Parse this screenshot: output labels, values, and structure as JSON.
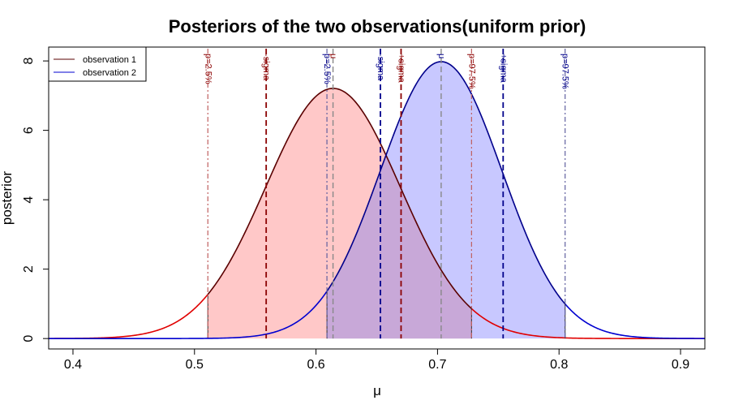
{
  "chart_data": {
    "type": "line",
    "title": "Posteriors of the two observations(uniform prior)",
    "xlabel": "μ",
    "ylabel": "posterior",
    "xlim": [
      0.38,
      0.92
    ],
    "ylim": [
      -0.3,
      8.4
    ],
    "xticks": [
      0.4,
      0.5,
      0.6,
      0.7,
      0.8,
      0.9
    ],
    "xtick_labels": [
      "0.4",
      "0.5",
      "0.6",
      "0.7",
      "0.8",
      "0.9"
    ],
    "yticks": [
      0,
      2,
      4,
      6,
      8
    ],
    "ytick_labels": [
      "0",
      "2",
      "4",
      "6",
      "8"
    ],
    "grid": false,
    "legend_position": "top-left",
    "series": [
      {
        "name": "observation 1",
        "color": "#e00000",
        "edge_color": "#5a0000",
        "fill": "#ffc8c8",
        "distribution": "normal",
        "mean": 0.614,
        "sigma": 0.0553,
        "peak": 7.21,
        "interval_95": [
          0.511,
          0.728
        ],
        "sigma_bounds": [
          0.559,
          0.67
        ],
        "line_color": "#8b0000",
        "ci_line_color": "#c06060",
        "ann_color": "#8b0000",
        "annotations": {
          "p_low": "p=2.5%",
          "sigma_minus": "-sigma",
          "mu": "μ",
          "sigma_plus": "+sigma",
          "p_high": "p=97.5%"
        }
      },
      {
        "name": "observation 2",
        "color": "#0000d0",
        "edge_color": "#00008b",
        "fill": "#c8c8ff",
        "distribution": "normal",
        "mean": 0.703,
        "sigma": 0.05,
        "peak": 7.98,
        "interval_95": [
          0.609,
          0.805
        ],
        "sigma_bounds": [
          0.653,
          0.754
        ],
        "line_color": "#00008b",
        "ci_line_color": "#6060a0",
        "ann_color": "#00008b",
        "annotations": {
          "p_low": "p=2.5%",
          "sigma_minus": "-sigma",
          "mu": "μ",
          "sigma_plus": "+sigma",
          "p_high": "p=97.5%"
        }
      }
    ],
    "overlap_fill": "#c8a8d8"
  }
}
